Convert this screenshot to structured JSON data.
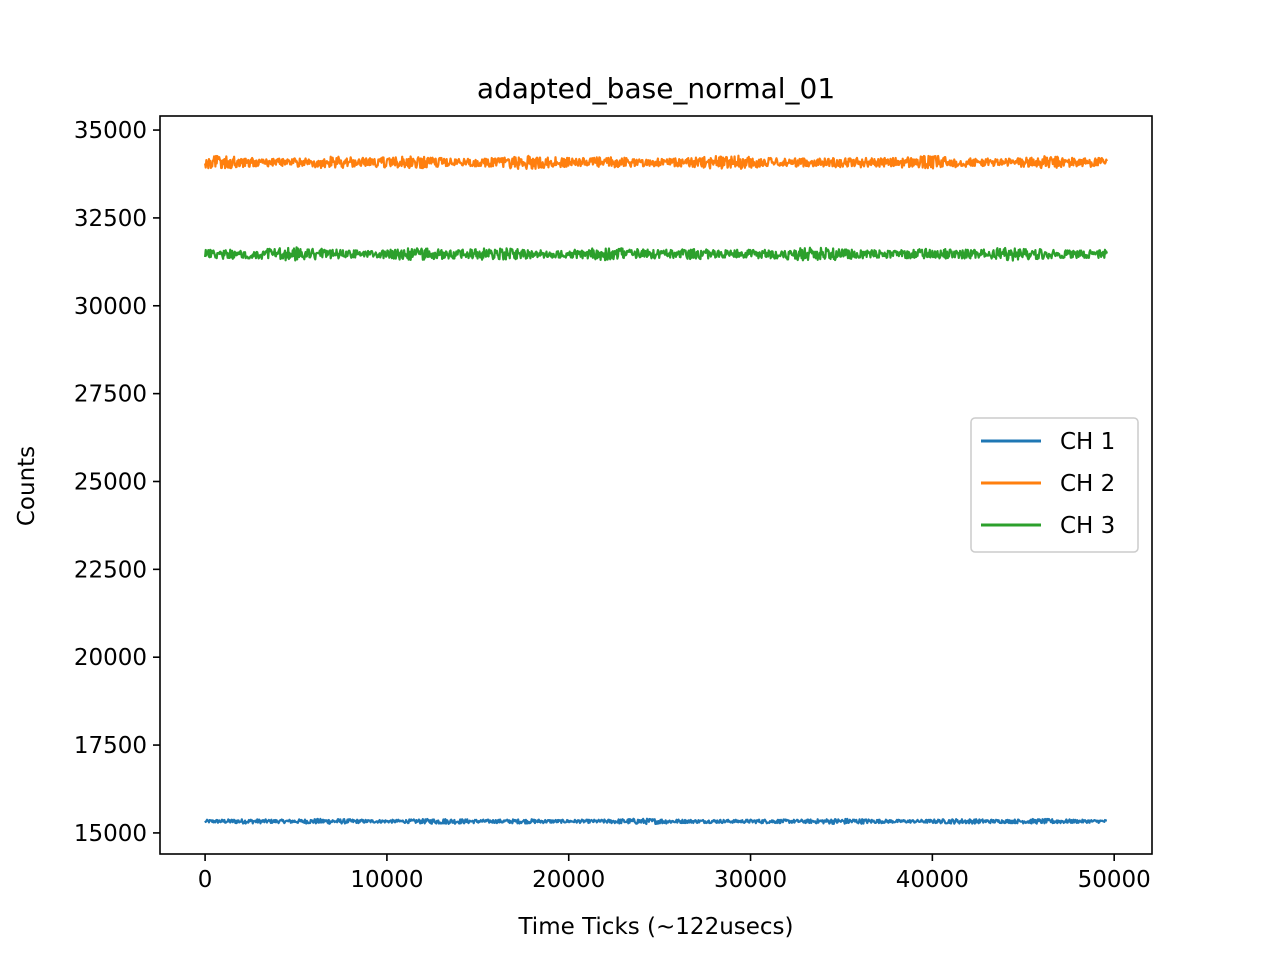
{
  "chart_data": {
    "type": "line",
    "title": "adapted_base_normal_01",
    "xlabel": "Time Ticks (~122usecs)",
    "ylabel": "Counts",
    "xlim": [
      -2480,
      52080
    ],
    "ylim": [
      14400,
      35400
    ],
    "xticks": [
      0,
      10000,
      20000,
      30000,
      40000,
      50000
    ],
    "xtick_labels": [
      "0",
      "10000",
      "20000",
      "30000",
      "40000",
      "50000"
    ],
    "yticks": [
      15000,
      17500,
      20000,
      22500,
      25000,
      27500,
      30000,
      32500,
      35000
    ],
    "ytick_labels": [
      "15000",
      "17500",
      "20000",
      "22500",
      "25000",
      "27500",
      "30000",
      "32500",
      "35000"
    ],
    "grid": false,
    "legend_position": "center-right",
    "x_range": [
      0,
      49600
    ],
    "series": [
      {
        "name": "CH 1",
        "color": "#1f77b4",
        "mean": 15330,
        "noise_amplitude": 80
      },
      {
        "name": "CH 2",
        "color": "#ff7f0e",
        "mean": 34080,
        "noise_amplitude": 200
      },
      {
        "name": "CH 3",
        "color": "#2ca02c",
        "mean": 31470,
        "noise_amplitude": 200
      }
    ]
  }
}
